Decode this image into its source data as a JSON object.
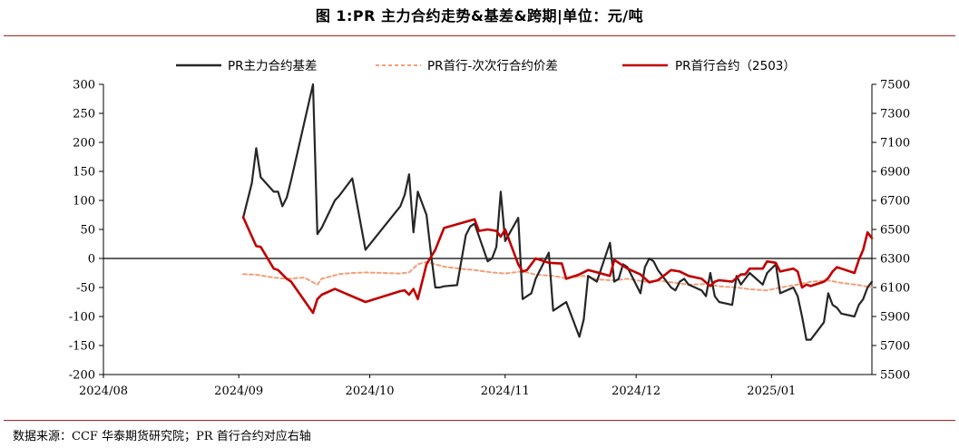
{
  "title": "图 1:PR 主力合约走势&基差&跨期|单位：元/吨",
  "source": "数据来源：CCF  华泰期货研究院；PR 首行合约对应右轴",
  "chart_data": {
    "type": "line",
    "x_tick_labels": [
      "2024/08",
      "2024/09",
      "2024/10",
      "2024/11",
      "2024/12",
      "2025/01"
    ],
    "x_range": [
      "2024-08-01",
      "2025-01-24"
    ],
    "y_left": {
      "min": -200,
      "max": 300,
      "step": 50
    },
    "y_right": {
      "min": 5500,
      "max": 7500,
      "step": 200
    },
    "grid": false,
    "legend_position": "top",
    "series": [
      {
        "name": "PR主力合约基差",
        "axis": "left",
        "color": "#262626",
        "style": "solid",
        "points": [
          [
            "2024-09-02",
            70
          ],
          [
            "2024-09-04",
            130
          ],
          [
            "2024-09-05",
            190
          ],
          [
            "2024-09-06",
            140
          ],
          [
            "2024-09-09",
            115
          ],
          [
            "2024-09-10",
            115
          ],
          [
            "2024-09-11",
            90
          ],
          [
            "2024-09-12",
            105
          ],
          [
            "2024-09-13",
            135
          ],
          [
            "2024-09-18",
            300
          ],
          [
            "2024-09-19",
            42
          ],
          [
            "2024-09-20",
            53
          ],
          [
            "2024-09-23",
            100
          ],
          [
            "2024-09-24",
            108
          ],
          [
            "2024-09-25",
            118
          ],
          [
            "2024-09-26",
            128
          ],
          [
            "2024-09-27",
            138
          ],
          [
            "2024-09-30",
            15
          ],
          [
            "2024-10-08",
            90
          ],
          [
            "2024-10-09",
            110
          ],
          [
            "2024-10-10",
            145
          ],
          [
            "2024-10-11",
            45
          ],
          [
            "2024-10-12",
            115
          ],
          [
            "2024-10-14",
            75
          ],
          [
            "2024-10-15",
            10
          ],
          [
            "2024-10-16",
            -50
          ],
          [
            "2024-10-17",
            -50
          ],
          [
            "2024-10-18",
            -48
          ],
          [
            "2024-10-21",
            -46
          ],
          [
            "2024-10-23",
            40
          ],
          [
            "2024-10-24",
            55
          ],
          [
            "2024-10-25",
            60
          ],
          [
            "2024-10-28",
            -5
          ],
          [
            "2024-10-29",
            0
          ],
          [
            "2024-10-30",
            20
          ],
          [
            "2024-10-31",
            115
          ],
          [
            "2024-11-01",
            30
          ],
          [
            "2024-11-04",
            70
          ],
          [
            "2024-11-05",
            -70
          ],
          [
            "2024-11-06",
            -65
          ],
          [
            "2024-11-07",
            -60
          ],
          [
            "2024-11-08",
            -35
          ],
          [
            "2024-11-11",
            10
          ],
          [
            "2024-11-12",
            -90
          ],
          [
            "2024-11-13",
            -85
          ],
          [
            "2024-11-14",
            -80
          ],
          [
            "2024-11-15",
            -75
          ],
          [
            "2024-11-18",
            -135
          ],
          [
            "2024-11-19",
            -105
          ],
          [
            "2024-11-20",
            -30
          ],
          [
            "2024-11-21",
            -35
          ],
          [
            "2024-11-22",
            -40
          ],
          [
            "2024-11-25",
            27
          ],
          [
            "2024-11-26",
            -40
          ],
          [
            "2024-11-27",
            -35
          ],
          [
            "2024-11-28",
            -10
          ],
          [
            "2024-11-29",
            -15
          ],
          [
            "2024-12-02",
            -60
          ],
          [
            "2024-12-03",
            -15
          ],
          [
            "2024-12-04",
            0
          ],
          [
            "2024-12-05",
            -5
          ],
          [
            "2024-12-06",
            -20
          ],
          [
            "2024-12-09",
            -50
          ],
          [
            "2024-12-10",
            -55
          ],
          [
            "2024-12-11",
            -40
          ],
          [
            "2024-12-12",
            -35
          ],
          [
            "2024-12-13",
            -45
          ],
          [
            "2024-12-16",
            -55
          ],
          [
            "2024-12-17",
            -65
          ],
          [
            "2024-12-18",
            -25
          ],
          [
            "2024-12-19",
            -65
          ],
          [
            "2024-12-20",
            -75
          ],
          [
            "2024-12-23",
            -80
          ],
          [
            "2024-12-24",
            -30
          ],
          [
            "2024-12-25",
            -45
          ],
          [
            "2024-12-26",
            -35
          ],
          [
            "2024-12-27",
            -25
          ],
          [
            "2024-12-30",
            -45
          ],
          [
            "2024-12-31",
            -25
          ],
          [
            "2025-01-02",
            -10
          ],
          [
            "2025-01-03",
            -60
          ],
          [
            "2025-01-06",
            -50
          ],
          [
            "2025-01-07",
            -65
          ],
          [
            "2025-01-08",
            -100
          ],
          [
            "2025-01-09",
            -140
          ],
          [
            "2025-01-10",
            -140
          ],
          [
            "2025-01-13",
            -110
          ],
          [
            "2025-01-14",
            -60
          ],
          [
            "2025-01-15",
            -80
          ],
          [
            "2025-01-16",
            -85
          ],
          [
            "2025-01-17",
            -95
          ],
          [
            "2025-01-20",
            -100
          ],
          [
            "2025-01-21",
            -80
          ],
          [
            "2025-01-22",
            -70
          ],
          [
            "2025-01-23",
            -50
          ],
          [
            "2025-01-24",
            -40
          ]
        ]
      },
      {
        "name": "PR首行-次次行合约价差",
        "axis": "left",
        "color": "#f0a07a",
        "style": "dashed",
        "points": [
          [
            "2024-09-02",
            -27
          ],
          [
            "2024-09-05",
            -28
          ],
          [
            "2024-09-09",
            -33
          ],
          [
            "2024-09-12",
            -35
          ],
          [
            "2024-09-16",
            -33
          ],
          [
            "2024-09-19",
            -45
          ],
          [
            "2024-09-20",
            -35
          ],
          [
            "2024-09-24",
            -27
          ],
          [
            "2024-09-27",
            -25
          ],
          [
            "2024-09-30",
            -24
          ],
          [
            "2024-10-08",
            -26
          ],
          [
            "2024-10-10",
            -24
          ],
          [
            "2024-10-12",
            -10
          ],
          [
            "2024-10-14",
            -6
          ],
          [
            "2024-10-16",
            -10
          ],
          [
            "2024-10-18",
            -14
          ],
          [
            "2024-10-22",
            -18
          ],
          [
            "2024-10-25",
            -20
          ],
          [
            "2024-10-29",
            -24
          ],
          [
            "2024-11-01",
            -26
          ],
          [
            "2024-11-05",
            -22
          ],
          [
            "2024-11-08",
            -28
          ],
          [
            "2024-11-12",
            -30
          ],
          [
            "2024-11-15",
            -34
          ],
          [
            "2024-11-19",
            -30
          ],
          [
            "2024-11-22",
            -36
          ],
          [
            "2024-11-26",
            -38
          ],
          [
            "2024-11-29",
            -35
          ],
          [
            "2024-12-03",
            -40
          ],
          [
            "2024-12-06",
            -38
          ],
          [
            "2024-12-10",
            -42
          ],
          [
            "2024-12-13",
            -45
          ],
          [
            "2024-12-17",
            -44
          ],
          [
            "2024-12-20",
            -48
          ],
          [
            "2024-12-24",
            -50
          ],
          [
            "2024-12-27",
            -53
          ],
          [
            "2024-12-31",
            -55
          ],
          [
            "2025-01-03",
            -50
          ],
          [
            "2025-01-07",
            -45
          ],
          [
            "2025-01-10",
            -40
          ],
          [
            "2025-01-14",
            -38
          ],
          [
            "2025-01-17",
            -42
          ],
          [
            "2025-01-21",
            -46
          ],
          [
            "2025-01-24",
            -50
          ]
        ]
      },
      {
        "name": "PR首行合约（2503）",
        "axis": "right",
        "color": "#c00000",
        "style": "solid",
        "points": [
          [
            "2024-09-02",
            6585
          ],
          [
            "2024-09-05",
            6385
          ],
          [
            "2024-09-06",
            6380
          ],
          [
            "2024-09-09",
            6230
          ],
          [
            "2024-09-10",
            6220
          ],
          [
            "2024-09-12",
            6160
          ],
          [
            "2024-09-13",
            6140
          ],
          [
            "2024-09-18",
            5925
          ],
          [
            "2024-09-19",
            6020
          ],
          [
            "2024-09-20",
            6050
          ],
          [
            "2024-09-23",
            6090
          ],
          [
            "2024-09-30",
            6000
          ],
          [
            "2024-10-08",
            6075
          ],
          [
            "2024-10-09",
            6080
          ],
          [
            "2024-10-10",
            6050
          ],
          [
            "2024-10-11",
            6090
          ],
          [
            "2024-10-12",
            6020
          ],
          [
            "2024-10-14",
            6260
          ],
          [
            "2024-10-16",
            6360
          ],
          [
            "2024-10-18",
            6510
          ],
          [
            "2024-10-25",
            6570
          ],
          [
            "2024-10-26",
            6490
          ],
          [
            "2024-10-28",
            6500
          ],
          [
            "2024-10-30",
            6490
          ],
          [
            "2024-10-31",
            6450
          ],
          [
            "2024-11-01",
            6500
          ],
          [
            "2024-11-04",
            6260
          ],
          [
            "2024-11-05",
            6210
          ],
          [
            "2024-11-06",
            6220
          ],
          [
            "2024-11-08",
            6300
          ],
          [
            "2024-11-11",
            6270
          ],
          [
            "2024-11-14",
            6265
          ],
          [
            "2024-11-15",
            6160
          ],
          [
            "2024-11-18",
            6190
          ],
          [
            "2024-11-20",
            6220
          ],
          [
            "2024-11-22",
            6205
          ],
          [
            "2024-11-25",
            6180
          ],
          [
            "2024-11-26",
            6290
          ],
          [
            "2024-11-27",
            6270
          ],
          [
            "2024-11-29",
            6230
          ],
          [
            "2024-12-02",
            6190
          ],
          [
            "2024-12-04",
            6135
          ],
          [
            "2024-12-06",
            6150
          ],
          [
            "2024-12-09",
            6220
          ],
          [
            "2024-12-11",
            6210
          ],
          [
            "2024-12-13",
            6180
          ],
          [
            "2024-12-16",
            6160
          ],
          [
            "2024-12-18",
            6110
          ],
          [
            "2024-12-19",
            6140
          ],
          [
            "2024-12-20",
            6150
          ],
          [
            "2024-12-23",
            6140
          ],
          [
            "2024-12-25",
            6190
          ],
          [
            "2024-12-26",
            6190
          ],
          [
            "2024-12-27",
            6230
          ],
          [
            "2024-12-30",
            6230
          ],
          [
            "2024-12-31",
            6280
          ],
          [
            "2025-01-02",
            6270
          ],
          [
            "2025-01-03",
            6210
          ],
          [
            "2025-01-06",
            6230
          ],
          [
            "2025-01-07",
            6210
          ],
          [
            "2025-01-08",
            6100
          ],
          [
            "2025-01-09",
            6120
          ],
          [
            "2025-01-10",
            6110
          ],
          [
            "2025-01-13",
            6140
          ],
          [
            "2025-01-14",
            6165
          ],
          [
            "2025-01-15",
            6210
          ],
          [
            "2025-01-16",
            6240
          ],
          [
            "2025-01-17",
            6230
          ],
          [
            "2025-01-20",
            6200
          ],
          [
            "2025-01-21",
            6290
          ],
          [
            "2025-01-22",
            6360
          ],
          [
            "2025-01-23",
            6480
          ],
          [
            "2025-01-24",
            6440
          ]
        ]
      }
    ]
  }
}
